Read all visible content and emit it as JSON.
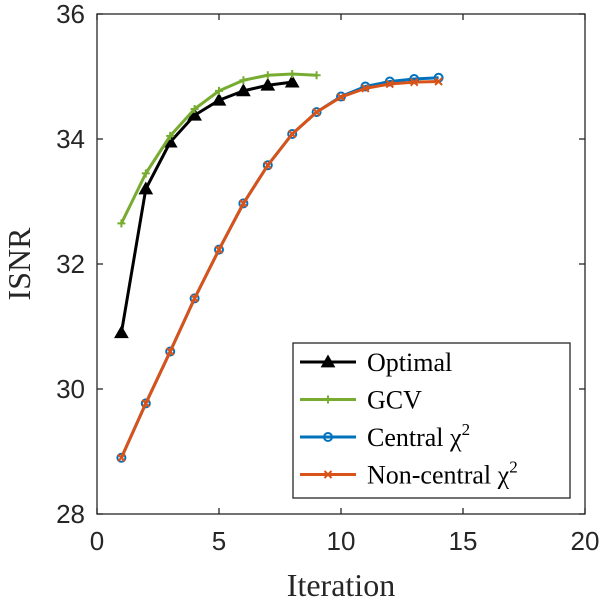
{
  "chart_data": {
    "type": "line",
    "title": "",
    "xlabel": "Iteration",
    "ylabel": "ISNR",
    "xlim": [
      0,
      20
    ],
    "ylim": [
      28,
      36
    ],
    "xticks": [
      0,
      5,
      10,
      15,
      20
    ],
    "yticks": [
      28,
      30,
      32,
      34,
      36
    ],
    "grid": false,
    "legend_position": "bottom-right",
    "series": [
      {
        "name": "Optimal",
        "color": "#000000",
        "marker": "triangle",
        "x": [
          1,
          2,
          3,
          4,
          5,
          6,
          7,
          8
        ],
        "y": [
          30.9,
          33.2,
          33.95,
          34.38,
          34.62,
          34.77,
          34.86,
          34.91
        ]
      },
      {
        "name": "GCV",
        "color": "#77AC30",
        "marker": "plus",
        "x": [
          1,
          2,
          3,
          4,
          5,
          6,
          7,
          8,
          9
        ],
        "y": [
          32.65,
          33.45,
          34.05,
          34.48,
          34.77,
          34.94,
          35.02,
          35.04,
          35.02
        ]
      },
      {
        "name": "Central χ",
        "sup": "2",
        "color": "#0072BD",
        "marker": "circle",
        "x": [
          1,
          2,
          3,
          4,
          5,
          6,
          7,
          8,
          9,
          10,
          11,
          12,
          13,
          14
        ],
        "y": [
          28.9,
          29.77,
          30.6,
          31.45,
          32.23,
          32.97,
          33.58,
          34.08,
          34.43,
          34.68,
          34.84,
          34.92,
          34.96,
          34.98
        ]
      },
      {
        "name": "Non-central χ",
        "sup": "2",
        "color": "#D95319",
        "marker": "x",
        "x": [
          1,
          2,
          3,
          4,
          5,
          6,
          7,
          8,
          9,
          10,
          11,
          12,
          13,
          14
        ],
        "y": [
          28.9,
          29.77,
          30.6,
          31.45,
          32.23,
          32.97,
          33.58,
          34.08,
          34.43,
          34.67,
          34.81,
          34.88,
          34.91,
          34.92
        ]
      }
    ]
  }
}
